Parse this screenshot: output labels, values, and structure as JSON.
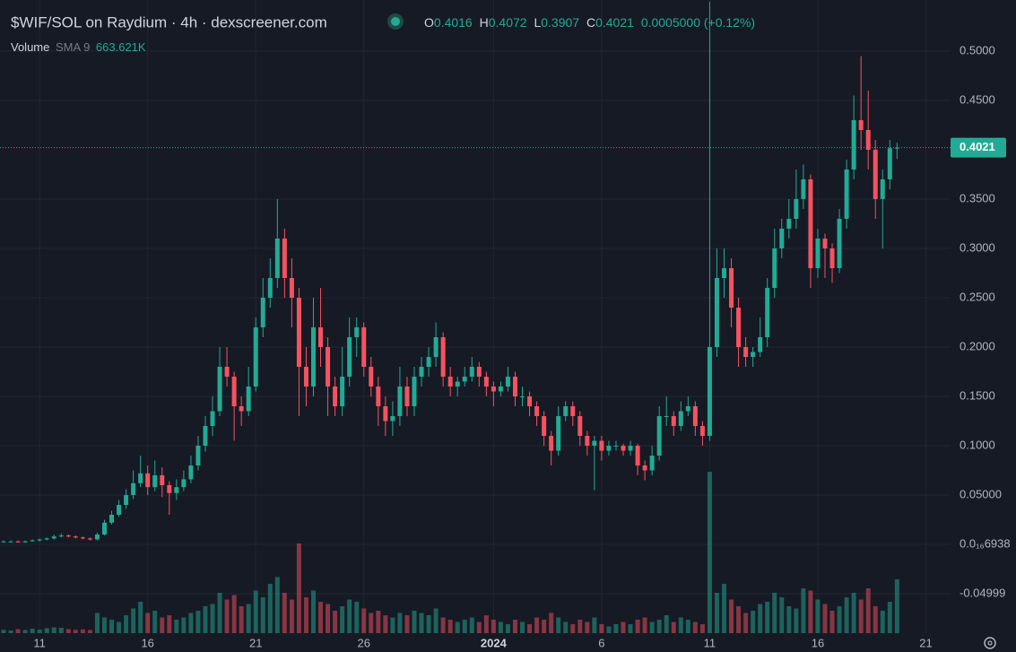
{
  "chart_data": {
    "type": "candlestick",
    "title": "$WIF/SOL on Raydium · 4h · dexscreener.com",
    "ohlc_labels": [
      "O",
      "H",
      "L",
      "C"
    ],
    "change": "0.0005000 (+0.12%)",
    "volume_label": "Volume",
    "sma_label": "SMA 9",
    "sma_value": "663.621K",
    "up_color": "#22ab94",
    "down_color": "#f7525f",
    "grid": true,
    "ylim": [
      -0.09,
      0.5518
    ],
    "yticks": [
      {
        "value": 0.5,
        "label": "0.5000"
      },
      {
        "value": 0.45,
        "label": "0.4500"
      },
      {
        "value": 0.35,
        "label": "0.3500"
      },
      {
        "value": 0.3,
        "label": "0.3000"
      },
      {
        "value": 0.25,
        "label": "0.2500"
      },
      {
        "value": 0.2,
        "label": "0.2000"
      },
      {
        "value": 0.15,
        "label": "0.1500"
      },
      {
        "value": 0.1,
        "label": "0.1000"
      },
      {
        "value": 0.05,
        "label": "0.05000"
      },
      {
        "value": 6.938e-17,
        "label": "0.0₁₆6938"
      },
      {
        "value": -0.04999,
        "label": "-0.04999"
      }
    ],
    "categories": [
      null,
      null,
      null,
      null,
      null,
      "11",
      null,
      null,
      null,
      null,
      null,
      null,
      null,
      null,
      null,
      null,
      null,
      null,
      null,
      null,
      "16",
      null,
      null,
      null,
      null,
      null,
      null,
      null,
      null,
      null,
      null,
      null,
      null,
      null,
      null,
      "21",
      null,
      null,
      null,
      null,
      null,
      null,
      null,
      null,
      null,
      null,
      null,
      null,
      null,
      null,
      "26",
      null,
      null,
      null,
      null,
      null,
      null,
      null,
      null,
      null,
      null,
      null,
      null,
      null,
      null,
      null,
      null,
      null,
      "2024",
      null,
      null,
      null,
      null,
      null,
      null,
      null,
      null,
      null,
      null,
      null,
      null,
      null,
      null,
      "6",
      null,
      null,
      null,
      null,
      null,
      null,
      null,
      null,
      null,
      null,
      null,
      null,
      null,
      null,
      "11",
      null,
      null,
      null,
      null,
      null,
      null,
      null,
      null,
      null,
      null,
      null,
      null,
      null,
      null,
      "16",
      null,
      null,
      null,
      null,
      null,
      null,
      null,
      null,
      null,
      null,
      null,
      null,
      null,
      null,
      "21"
    ],
    "candles": [
      [
        0.003,
        0.004,
        0.002,
        0.003
      ],
      [
        0.003,
        0.004,
        0.002,
        0.003
      ],
      [
        0.003,
        0.004,
        0.002,
        0.002
      ],
      [
        0.002,
        0.004,
        0.002,
        0.003
      ],
      [
        0.003,
        0.005,
        0.003,
        0.004
      ],
      [
        0.004,
        0.006,
        0.003,
        0.005
      ],
      [
        0.005,
        0.007,
        0.004,
        0.006
      ],
      [
        0.006,
        0.01,
        0.005,
        0.008
      ],
      [
        0.008,
        0.011,
        0.007,
        0.009
      ],
      [
        0.009,
        0.01,
        0.007,
        0.008
      ],
      [
        0.008,
        0.009,
        0.006,
        0.007
      ],
      [
        0.007,
        0.008,
        0.005,
        0.006
      ],
      [
        0.006,
        0.007,
        0.004,
        0.005
      ],
      [
        0.005,
        0.012,
        0.004,
        0.01
      ],
      [
        0.01,
        0.025,
        0.009,
        0.022
      ],
      [
        0.022,
        0.034,
        0.02,
        0.03
      ],
      [
        0.03,
        0.045,
        0.028,
        0.04
      ],
      [
        0.04,
        0.056,
        0.036,
        0.05
      ],
      [
        0.05,
        0.075,
        0.046,
        0.062
      ],
      [
        0.062,
        0.09,
        0.058,
        0.072
      ],
      [
        0.072,
        0.08,
        0.05,
        0.058
      ],
      [
        0.058,
        0.085,
        0.054,
        0.07
      ],
      [
        0.07,
        0.078,
        0.048,
        0.06
      ],
      [
        0.06,
        0.064,
        0.03,
        0.052
      ],
      [
        0.052,
        0.066,
        0.045,
        0.058
      ],
      [
        0.058,
        0.075,
        0.054,
        0.066
      ],
      [
        0.066,
        0.09,
        0.062,
        0.08
      ],
      [
        0.08,
        0.11,
        0.075,
        0.1
      ],
      [
        0.1,
        0.13,
        0.094,
        0.12
      ],
      [
        0.12,
        0.15,
        0.11,
        0.135
      ],
      [
        0.135,
        0.2,
        0.13,
        0.18
      ],
      [
        0.18,
        0.2,
        0.16,
        0.17
      ],
      [
        0.17,
        0.175,
        0.105,
        0.14
      ],
      [
        0.14,
        0.15,
        0.12,
        0.135
      ],
      [
        0.135,
        0.18,
        0.13,
        0.16
      ],
      [
        0.16,
        0.23,
        0.155,
        0.22
      ],
      [
        0.22,
        0.27,
        0.21,
        0.25
      ],
      [
        0.25,
        0.29,
        0.24,
        0.27
      ],
      [
        0.27,
        0.35,
        0.26,
        0.31
      ],
      [
        0.31,
        0.32,
        0.25,
        0.27
      ],
      [
        0.27,
        0.29,
        0.22,
        0.25
      ],
      [
        0.25,
        0.26,
        0.13,
        0.18
      ],
      [
        0.18,
        0.2,
        0.14,
        0.16
      ],
      [
        0.16,
        0.25,
        0.15,
        0.22
      ],
      [
        0.22,
        0.26,
        0.18,
        0.2
      ],
      [
        0.2,
        0.21,
        0.13,
        0.16
      ],
      [
        0.16,
        0.17,
        0.13,
        0.14
      ],
      [
        0.14,
        0.2,
        0.13,
        0.17
      ],
      [
        0.17,
        0.23,
        0.16,
        0.21
      ],
      [
        0.21,
        0.23,
        0.19,
        0.22
      ],
      [
        0.22,
        0.225,
        0.17,
        0.18
      ],
      [
        0.18,
        0.19,
        0.15,
        0.16
      ],
      [
        0.16,
        0.17,
        0.12,
        0.14
      ],
      [
        0.14,
        0.15,
        0.11,
        0.125
      ],
      [
        0.125,
        0.145,
        0.11,
        0.13
      ],
      [
        0.13,
        0.18,
        0.12,
        0.16
      ],
      [
        0.16,
        0.17,
        0.13,
        0.14
      ],
      [
        0.14,
        0.18,
        0.13,
        0.17
      ],
      [
        0.17,
        0.19,
        0.16,
        0.18
      ],
      [
        0.18,
        0.2,
        0.17,
        0.19
      ],
      [
        0.19,
        0.225,
        0.18,
        0.21
      ],
      [
        0.21,
        0.215,
        0.16,
        0.17
      ],
      [
        0.17,
        0.18,
        0.15,
        0.16
      ],
      [
        0.16,
        0.17,
        0.15,
        0.165
      ],
      [
        0.165,
        0.18,
        0.16,
        0.17
      ],
      [
        0.17,
        0.19,
        0.165,
        0.18
      ],
      [
        0.18,
        0.185,
        0.16,
        0.17
      ],
      [
        0.17,
        0.175,
        0.15,
        0.16
      ],
      [
        0.16,
        0.165,
        0.14,
        0.155
      ],
      [
        0.155,
        0.165,
        0.15,
        0.16
      ],
      [
        0.16,
        0.18,
        0.155,
        0.17
      ],
      [
        0.17,
        0.175,
        0.14,
        0.15
      ],
      [
        0.15,
        0.16,
        0.14,
        0.15
      ],
      [
        0.15,
        0.155,
        0.13,
        0.14
      ],
      [
        0.14,
        0.145,
        0.12,
        0.13
      ],
      [
        0.13,
        0.135,
        0.1,
        0.11
      ],
      [
        0.11,
        0.115,
        0.08,
        0.095
      ],
      [
        0.095,
        0.14,
        0.09,
        0.13
      ],
      [
        0.13,
        0.145,
        0.125,
        0.14
      ],
      [
        0.14,
        0.145,
        0.12,
        0.13
      ],
      [
        0.13,
        0.135,
        0.1,
        0.11
      ],
      [
        0.11,
        0.115,
        0.09,
        0.1
      ],
      [
        0.1,
        0.11,
        0.055,
        0.105
      ],
      [
        0.105,
        0.11,
        0.085,
        0.095
      ],
      [
        0.095,
        0.105,
        0.09,
        0.1
      ],
      [
        0.1,
        0.105,
        0.095,
        0.1
      ],
      [
        0.1,
        0.102,
        0.09,
        0.095
      ],
      [
        0.095,
        0.105,
        0.09,
        0.1
      ],
      [
        0.1,
        0.102,
        0.07,
        0.08
      ],
      [
        0.08,
        0.085,
        0.065,
        0.075
      ],
      [
        0.075,
        0.1,
        0.07,
        0.09
      ],
      [
        0.09,
        0.14,
        0.085,
        0.13
      ],
      [
        0.13,
        0.15,
        0.12,
        0.13
      ],
      [
        0.13,
        0.135,
        0.11,
        0.12
      ],
      [
        0.12,
        0.145,
        0.115,
        0.135
      ],
      [
        0.135,
        0.15,
        0.13,
        0.14
      ],
      [
        0.14,
        0.145,
        0.11,
        0.12
      ],
      [
        0.12,
        0.125,
        0.1,
        0.11
      ],
      [
        0.11,
        0.55,
        0.105,
        0.2
      ],
      [
        0.2,
        0.3,
        0.19,
        0.27
      ],
      [
        0.27,
        0.3,
        0.25,
        0.28
      ],
      [
        0.28,
        0.29,
        0.22,
        0.24
      ],
      [
        0.24,
        0.25,
        0.18,
        0.2
      ],
      [
        0.2,
        0.21,
        0.18,
        0.19
      ],
      [
        0.19,
        0.2,
        0.18,
        0.195
      ],
      [
        0.195,
        0.23,
        0.19,
        0.21
      ],
      [
        0.21,
        0.27,
        0.2,
        0.26
      ],
      [
        0.26,
        0.32,
        0.25,
        0.3
      ],
      [
        0.3,
        0.33,
        0.29,
        0.32
      ],
      [
        0.32,
        0.35,
        0.31,
        0.33
      ],
      [
        0.33,
        0.38,
        0.32,
        0.35
      ],
      [
        0.35,
        0.385,
        0.34,
        0.37
      ],
      [
        0.37,
        0.375,
        0.26,
        0.28
      ],
      [
        0.28,
        0.32,
        0.27,
        0.31
      ],
      [
        0.31,
        0.315,
        0.27,
        0.3
      ],
      [
        0.3,
        0.305,
        0.265,
        0.28
      ],
      [
        0.28,
        0.34,
        0.275,
        0.33
      ],
      [
        0.33,
        0.39,
        0.32,
        0.38
      ],
      [
        0.38,
        0.455,
        0.37,
        0.43
      ],
      [
        0.43,
        0.495,
        0.4,
        0.42
      ],
      [
        0.42,
        0.46,
        0.38,
        0.4
      ],
      [
        0.4,
        0.41,
        0.33,
        0.35
      ],
      [
        0.35,
        0.38,
        0.3,
        0.37
      ],
      [
        0.37,
        0.41,
        0.36,
        0.4016
      ],
      [
        0.4016,
        0.4072,
        0.3907,
        0.4021
      ],
      null,
      null,
      null,
      null
    ],
    "volume": [
      150000,
      120000,
      180000,
      140000,
      200000,
      160000,
      220000,
      260000,
      240000,
      180000,
      150000,
      170000,
      140000,
      900000,
      700000,
      600000,
      500000,
      800000,
      1100000,
      1400000,
      900000,
      1000000,
      700000,
      800000,
      600000,
      700000,
      900000,
      1000000,
      1200000,
      1300000,
      1800000,
      1500000,
      1700000,
      1200000,
      1300000,
      1900000,
      1600000,
      2200000,
      2500000,
      1800000,
      1500000,
      4000000,
      1600000,
      1900000,
      1400000,
      1300000,
      1000000,
      1200000,
      1500000,
      1400000,
      1100000,
      900000,
      1000000,
      800000,
      700000,
      900000,
      800000,
      1000000,
      900000,
      800000,
      1100000,
      700000,
      600000,
      500000,
      600000,
      700000,
      500000,
      800000,
      600000,
      500000,
      400000,
      600000,
      500000,
      400000,
      700000,
      600000,
      900000,
      700000,
      500000,
      400000,
      600000,
      500000,
      700000,
      400000,
      300000,
      400000,
      500000,
      400000,
      600000,
      700000,
      500000,
      600000,
      800000,
      500000,
      700000,
      600000,
      500000,
      400000,
      7200000,
      1800000,
      2200000,
      1500000,
      1200000,
      900000,
      1000000,
      1300000,
      1400000,
      1800000,
      1600000,
      1200000,
      1100000,
      2000000,
      1900000,
      1500000,
      1300000,
      1000000,
      1200000,
      1600000,
      1800000,
      1500000,
      2000000,
      1200000,
      1000000,
      1400000,
      2400000,
      null,
      null,
      null,
      null
    ]
  }
}
